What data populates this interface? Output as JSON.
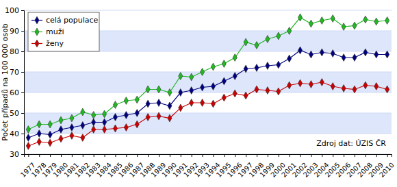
{
  "chart_data": {
    "type": "line",
    "y_label": "Počet případů na 100 000 osob",
    "source": "Zdroj dat: ÚZIS ČR",
    "x": [
      1977,
      1978,
      1979,
      1980,
      1981,
      1982,
      1983,
      1984,
      1985,
      1986,
      1987,
      1988,
      1989,
      1990,
      1991,
      1992,
      1993,
      1994,
      1995,
      1996,
      1997,
      1998,
      1999,
      2000,
      2001,
      2002,
      2003,
      2004,
      2005,
      2006,
      2007,
      2008,
      2009,
      2010
    ],
    "xlim": [
      1976.6,
      2010.4
    ],
    "xticks": [
      1977,
      1978,
      1979,
      1980,
      1981,
      1982,
      1983,
      1984,
      1985,
      1986,
      1987,
      1988,
      1989,
      1990,
      1991,
      1992,
      1993,
      1994,
      1995,
      1996,
      1997,
      1998,
      1999,
      2000,
      2001,
      2002,
      2003,
      2004,
      2005,
      2006,
      2007,
      2008,
      2009,
      2010
    ],
    "ylim": [
      30,
      100
    ],
    "yticks": [
      30,
      40,
      50,
      60,
      70,
      80,
      90,
      100
    ],
    "grid": true,
    "legend": "upper left",
    "marker": "diamond",
    "series": [
      {
        "name": "celá populace",
        "color": "#000080",
        "values": [
          38,
          40,
          39.5,
          42,
          43,
          44,
          45.5,
          45.5,
          48,
          49,
          50,
          54.5,
          55,
          53.5,
          60,
          61,
          62.5,
          63,
          65.5,
          68,
          71.5,
          72,
          73,
          73.5,
          76.5,
          80.5,
          78.5,
          79.5,
          79,
          77,
          77,
          79.5,
          78.5,
          78.5
        ]
      },
      {
        "name": "muži",
        "color": "#22b822",
        "values": [
          42,
          44.5,
          44.5,
          46.5,
          47.5,
          50.5,
          49,
          49.5,
          54,
          56,
          56.5,
          61.5,
          61.5,
          60,
          68,
          67.5,
          70,
          72.5,
          74,
          77,
          84.5,
          83,
          86,
          87.5,
          90,
          96.5,
          93.5,
          95,
          96,
          92,
          92.5,
          95.5,
          94.5,
          95
        ]
      },
      {
        "name": "ženy",
        "color": "#cc0000",
        "values": [
          34,
          36,
          35.5,
          37.5,
          39,
          38,
          42,
          42,
          42.5,
          43,
          44.5,
          48,
          48.5,
          47.5,
          52.5,
          55,
          55,
          54.5,
          57.5,
          59.5,
          58.5,
          61.5,
          61,
          60.5,
          63.5,
          64.5,
          64,
          65,
          63,
          62,
          61.5,
          63.5,
          63,
          61.5
        ]
      }
    ]
  }
}
